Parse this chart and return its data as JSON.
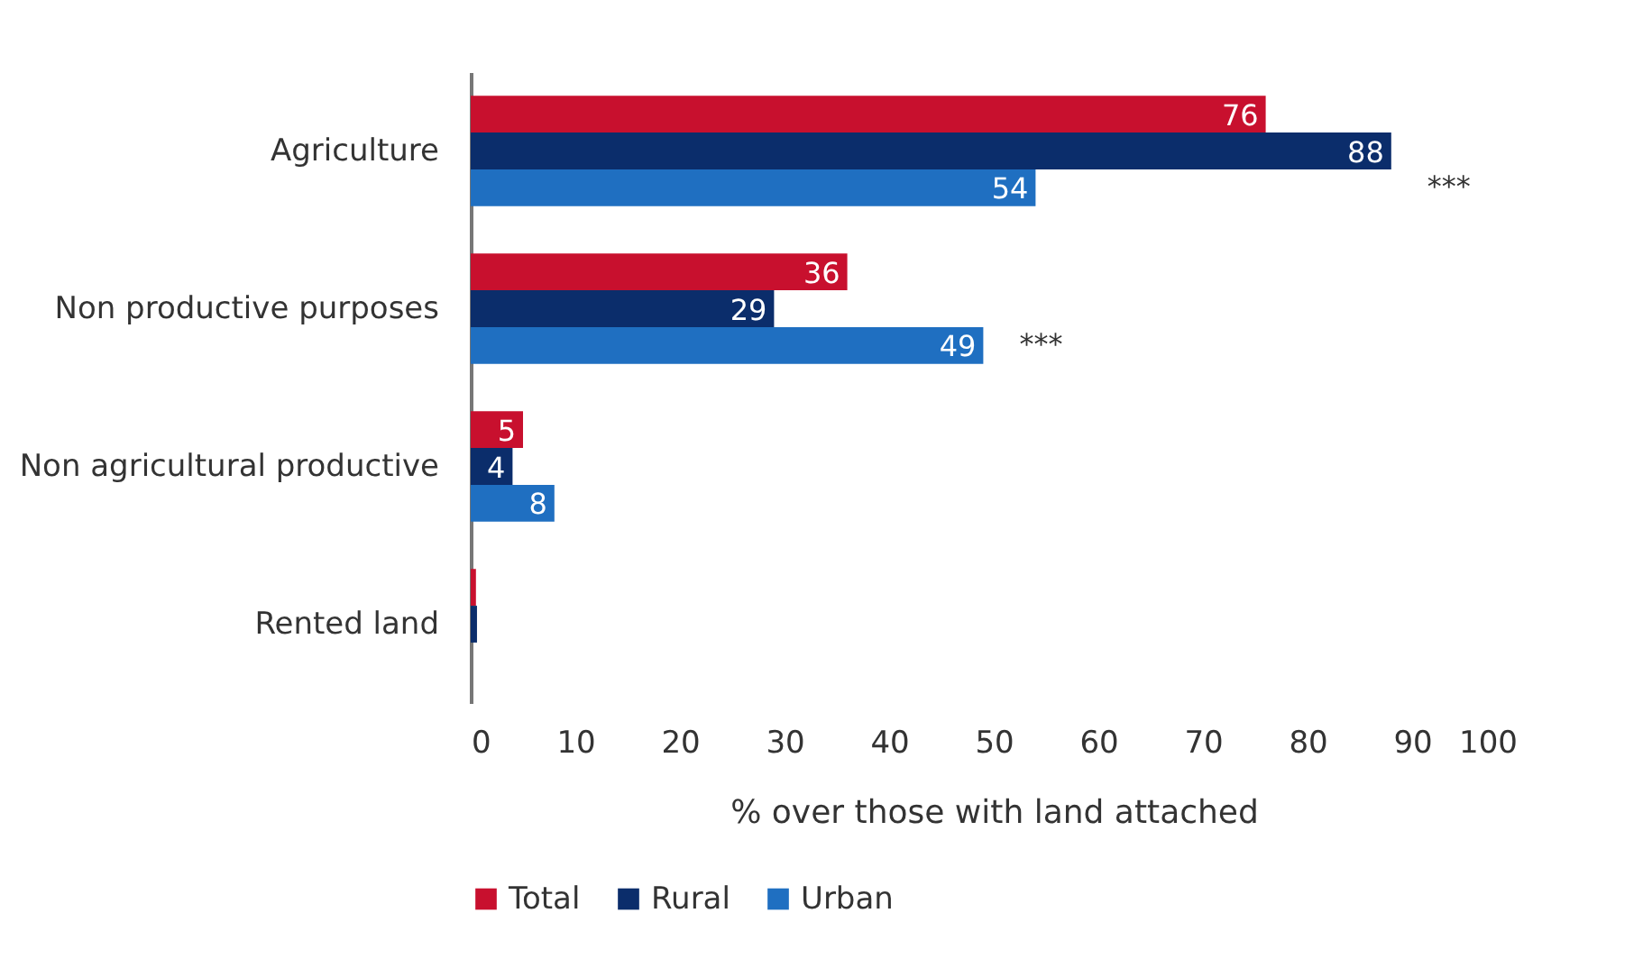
{
  "chart_data": {
    "type": "bar",
    "orientation": "horizontal",
    "xlabel": "% over those with land attached",
    "categories": [
      "Agriculture",
      "Non productive purposes",
      "Non agricultural productive",
      "Rented land"
    ],
    "series": [
      {
        "name": "Total",
        "color": "#c8102e",
        "values": [
          76,
          36,
          5,
          0.5
        ],
        "value_labels": [
          "76",
          "36",
          "5",
          null
        ]
      },
      {
        "name": "Rural",
        "color": "#0b2d6b",
        "values": [
          88,
          29,
          4,
          0.6
        ],
        "value_labels": [
          "88",
          "29",
          "4",
          null
        ]
      },
      {
        "name": "Urban",
        "color": "#1f6fc1",
        "values": [
          54,
          49,
          8,
          0
        ],
        "value_labels": [
          "54",
          "49",
          "8",
          null
        ]
      }
    ],
    "xlim": [
      0,
      100
    ],
    "xticks": [
      0,
      10,
      20,
      30,
      40,
      50,
      60,
      70,
      80,
      90,
      100
    ],
    "grid": false,
    "legend": "bottom",
    "annotations": [
      "***",
      "***"
    ]
  }
}
